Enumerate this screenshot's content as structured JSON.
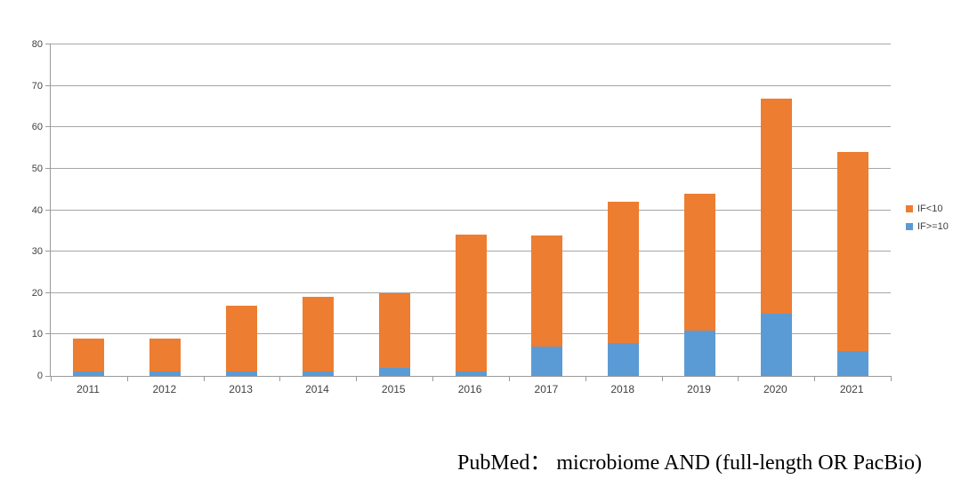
{
  "caption": "PubMed： microbiome AND (full-length OR PacBio)",
  "colors": {
    "series_if_lt_10": "#ED7D31",
    "series_if_gte_10": "#5B9BD5",
    "gridline": "#a6a6a6",
    "axis": "#9a9a9a",
    "label_text": "#404040"
  },
  "legend": {
    "items": [
      {
        "label": "IF<10",
        "color": "#ED7D31"
      },
      {
        "label": "IF>=10",
        "color": "#5B9BD5"
      }
    ]
  },
  "chart_data": {
    "type": "bar",
    "stacked": true,
    "title": "",
    "xlabel": "",
    "ylabel": "",
    "categories": [
      "2011",
      "2012",
      "2013",
      "2014",
      "2015",
      "2016",
      "2017",
      "2018",
      "2019",
      "2020",
      "2021"
    ],
    "series": [
      {
        "name": "IF<10",
        "color": "#ED7D31",
        "stack_order": "top",
        "values": [
          8,
          8,
          16,
          18,
          18,
          33,
          27,
          34,
          33,
          52,
          48
        ]
      },
      {
        "name": "IF>=10",
        "color": "#5B9BD5",
        "stack_order": "bottom",
        "values": [
          1,
          1,
          1,
          1,
          2,
          1,
          7,
          8,
          11,
          15,
          6
        ]
      }
    ],
    "totals": [
      9,
      9,
      17,
      19,
      20,
      34,
      34,
      42,
      44,
      67,
      54
    ],
    "ylim": [
      0,
      80
    ],
    "ytick_interval": 10,
    "ytick_labels": [
      "0",
      "10",
      "20",
      "30",
      "40",
      "50",
      "60",
      "70",
      "80"
    ],
    "grid": true,
    "legend_position": "right"
  }
}
